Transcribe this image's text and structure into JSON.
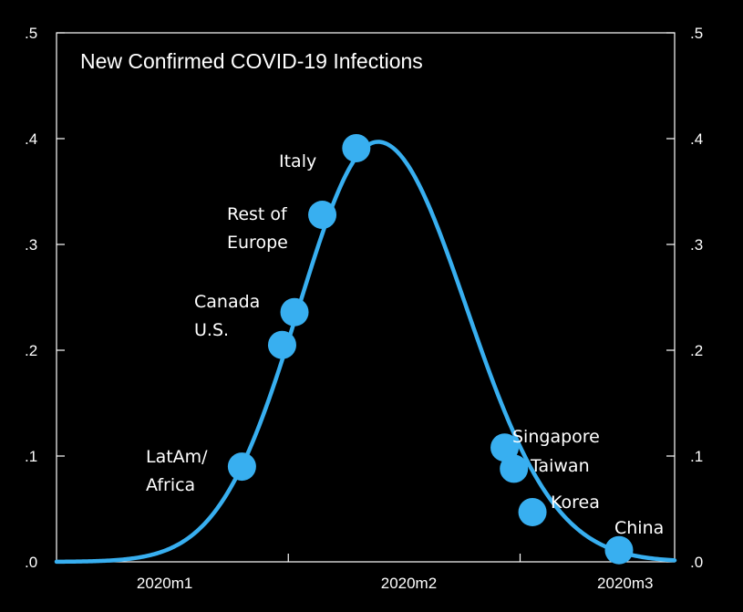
{
  "chart_data": {
    "type": "line",
    "title": "New Confirmed COVID-19 Infections",
    "xlabel": "",
    "ylabel": "",
    "ylim": [
      0,
      0.5
    ],
    "y_ticks": [
      {
        "value": 0.0,
        "label": ".0"
      },
      {
        "value": 0.1,
        "label": ".1"
      },
      {
        "value": 0.2,
        "label": ".2"
      },
      {
        "value": 0.3,
        "label": ".3"
      },
      {
        "value": 0.4,
        "label": ".4"
      },
      {
        "value": 0.5,
        "label": ".5"
      }
    ],
    "xlim": [
      0,
      100
    ],
    "x_ticks": [
      {
        "value": 37.5,
        "label": "2020m1"
      },
      {
        "value": 75,
        "label": "2020m2"
      }
    ],
    "x_tick_labels": [
      {
        "value": 17.5,
        "label": "2020m1"
      },
      {
        "value": 57,
        "label": "2020m2"
      },
      {
        "value": 92,
        "label": "2020m3"
      }
    ],
    "curve": {
      "name": "New Confirmed COVID-19 Infections",
      "peak_x": 52,
      "peak_y": 0.397,
      "left_spread": 12.8,
      "right_spread": 14.3,
      "color": "#38aff0"
    },
    "points": [
      {
        "name": "LatAm/ Africa",
        "label_lines": [
          "LatAm/",
          "Africa"
        ],
        "x": 30,
        "y": 0.09
      },
      {
        "name": "U.S.",
        "label_lines": [
          "U.S."
        ],
        "x": 36.5,
        "y": 0.205
      },
      {
        "name": "Canada",
        "label_lines": [
          "Canada"
        ],
        "x": 38.5,
        "y": 0.236
      },
      {
        "name": "Rest of Europe",
        "label_lines": [
          "Rest of",
          "Europe"
        ],
        "x": 43,
        "y": 0.328
      },
      {
        "name": "Italy",
        "label_lines": [
          "Italy"
        ],
        "x": 48.5,
        "y": 0.391
      },
      {
        "name": "Singapore",
        "label_lines": [
          "Singapore"
        ],
        "x": 72.5,
        "y": 0.108
      },
      {
        "name": "Taiwan",
        "label_lines": [
          "Taiwan"
        ],
        "x": 74,
        "y": 0.088
      },
      {
        "name": "Korea",
        "label_lines": [
          "Korea"
        ],
        "x": 77,
        "y": 0.047
      },
      {
        "name": "China",
        "label_lines": [
          "China"
        ],
        "x": 91,
        "y": 0.011
      }
    ],
    "grid": false,
    "legend": "none"
  }
}
